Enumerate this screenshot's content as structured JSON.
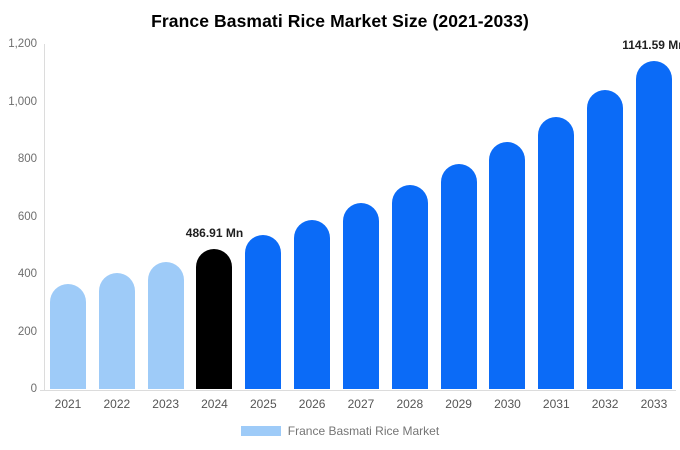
{
  "chart_data": {
    "type": "bar",
    "title": "France Basmati Rice Market Size (2021-2033)",
    "unit": "Mn",
    "categories": [
      "2021",
      "2022",
      "2023",
      "2024",
      "2025",
      "2026",
      "2027",
      "2028",
      "2029",
      "2030",
      "2031",
      "2032",
      "2033"
    ],
    "values": [
      366.5,
      402.9,
      442.9,
      486.91,
      535.3,
      588.4,
      646.9,
      711.1,
      781.7,
      859.4,
      944.7,
      1038.6,
      1141.59
    ],
    "bar_colors": [
      "#9ecbf8",
      "#9ecbf8",
      "#9ecbf8",
      "#000000",
      "#0b6bf7",
      "#0b6bf7",
      "#0b6bf7",
      "#0b6bf7",
      "#0b6bf7",
      "#0b6bf7",
      "#0b6bf7",
      "#0b6bf7",
      "#0b6bf7"
    ],
    "data_labels": [
      null,
      null,
      null,
      "486.91 Mn",
      null,
      null,
      null,
      null,
      null,
      null,
      null,
      null,
      "1141.59 Mn"
    ],
    "xlabel": "",
    "ylabel": "",
    "ylim": [
      0,
      1200
    ],
    "yticks": [
      {
        "value": 0,
        "label": "0"
      },
      {
        "value": 200,
        "label": "200"
      },
      {
        "value": 400,
        "label": "400"
      },
      {
        "value": 600,
        "label": "600"
      },
      {
        "value": 800,
        "label": "800"
      },
      {
        "value": 1000,
        "label": "1,000"
      },
      {
        "value": 1200,
        "label": "1,200"
      }
    ],
    "grid": false,
    "legend_position": "bottom",
    "legend": [
      {
        "label": "France Basmati Rice Market",
        "color": "#9ecbf8"
      }
    ],
    "colors": {
      "historical": "#9ecbf8",
      "highlight": "#000000",
      "forecast": "#0b6bf7",
      "axis_line": "#dcdcdc"
    }
  }
}
